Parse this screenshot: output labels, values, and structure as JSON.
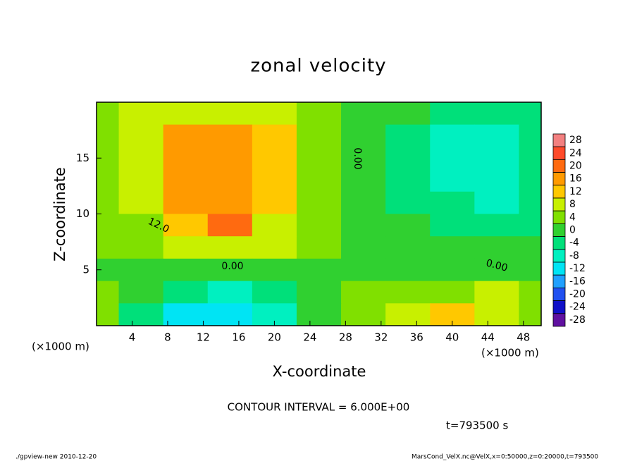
{
  "chart_data": {
    "type": "contour",
    "title": "zonal velocity",
    "x_label": "X-coordinate",
    "y_label": "Z-coordinate",
    "x_unit": "(×1000 m)",
    "x_unit_right": "(×1000 m)",
    "xlim": [
      0,
      50
    ],
    "ylim": [
      0,
      20
    ],
    "xticks": [
      4,
      8,
      12,
      16,
      20,
      24,
      28,
      32,
      36,
      40,
      44,
      48
    ],
    "yticks": [
      5,
      10,
      15
    ],
    "x": [
      0,
      5,
      10,
      15,
      20,
      25,
      30,
      35,
      40,
      45,
      50
    ],
    "y": [
      19,
      17,
      15,
      13,
      11,
      9,
      7,
      5,
      3,
      1
    ],
    "z": [
      [
        3,
        6,
        9,
        9,
        6,
        4,
        1,
        -2,
        -5,
        -6,
        -4
      ],
      [
        3,
        7,
        15,
        16,
        10,
        5,
        1,
        -3,
        -7,
        -8,
        -5
      ],
      [
        3,
        7,
        16,
        17,
        12,
        5,
        1,
        -3,
        -7,
        -9,
        -6
      ],
      [
        3,
        7,
        15,
        16,
        12,
        5,
        1,
        -3,
        -7,
        -9,
        -6
      ],
      [
        3,
        6,
        14,
        15,
        10,
        5,
        1,
        -3,
        -6,
        -8,
        -5
      ],
      [
        3,
        5,
        13,
        18,
        9,
        4,
        1,
        -2,
        -4,
        -4,
        -3
      ],
      [
        2,
        4,
        7,
        8,
        6,
        3,
        1,
        0,
        -1,
        -2,
        -2
      ],
      [
        1,
        1,
        1,
        1,
        1,
        1,
        1,
        1,
        1,
        1,
        1
      ],
      [
        2,
        -2,
        -6,
        -8,
        -4,
        0,
        3,
        3,
        4,
        6,
        3
      ],
      [
        3,
        -4,
        -11,
        -13,
        -8,
        -2,
        2,
        6,
        12,
        7,
        4
      ]
    ],
    "levels": [
      28,
      24,
      20,
      16,
      12,
      8,
      4,
      0,
      -4,
      -8,
      -12,
      -16,
      -20,
      -24,
      -28
    ],
    "level_colors": [
      "#f38080",
      "#ff4a2a",
      "#ff6a10",
      "#ff9a00",
      "#ffc800",
      "#c8f000",
      "#80e000",
      "#30d030",
      "#00e07a",
      "#00f0c0",
      "#00e4f4",
      "#20a0ff",
      "#2050f0",
      "#1010c8",
      "#6010a0"
    ],
    "contour_labels": [
      "12.0",
      "0.00",
      "0.00",
      "0.00"
    ],
    "contour_interval": "CONTOUR INTERVAL = 6.000E+00",
    "time": "t=793500 s",
    "footer_left": "./gpview-new  2010-12-20",
    "footer_right": "MarsCond_VelX.nc@VelX,x=0:50000,z=0:20000,t=793500"
  }
}
